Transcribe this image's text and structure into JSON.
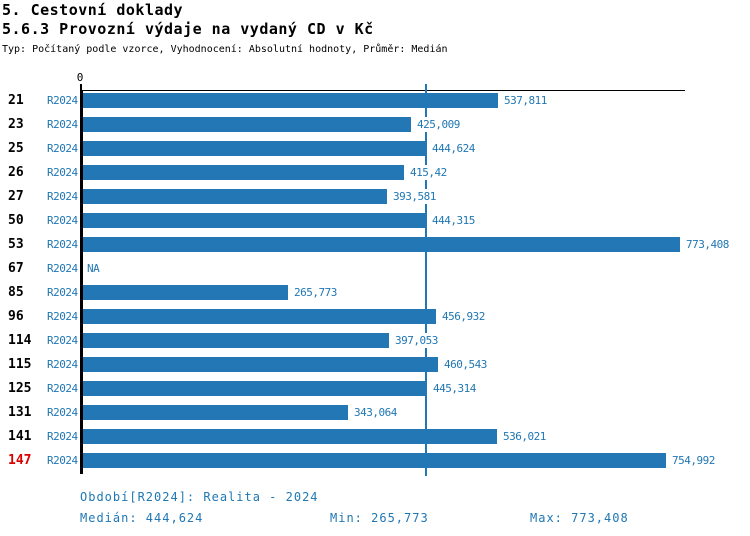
{
  "header": {
    "title": "5. Cestovní doklady",
    "subtitle": "5.6.3 Provozní výdaje na vydaný CD v Kč",
    "meta": "Typ: Počítaný podle vzorce, Vyhodnocení: Absolutní hodnoty, Průměr: Medián"
  },
  "chart_data": {
    "type": "bar",
    "orientation": "horizontal",
    "title": "5.6.3 Provozní výdaje na vydaný CD v Kč",
    "xlabel": "",
    "ylabel": "",
    "axis_zero_label": "0",
    "xlim": [
      0,
      800
    ],
    "grid": false,
    "median_value": 444.624,
    "min_value": 265.773,
    "max_value": 773.408,
    "series_name": "R2024",
    "rows": [
      {
        "id": "21",
        "period": "R2024",
        "value": 537.811,
        "label": "537,811",
        "highlight": false
      },
      {
        "id": "23",
        "period": "R2024",
        "value": 425.009,
        "label": "425,009",
        "highlight": false
      },
      {
        "id": "25",
        "period": "R2024",
        "value": 444.624,
        "label": "444,624",
        "highlight": false
      },
      {
        "id": "26",
        "period": "R2024",
        "value": 415.42,
        "label": "415,42",
        "highlight": false
      },
      {
        "id": "27",
        "period": "R2024",
        "value": 393.581,
        "label": "393,581",
        "highlight": false
      },
      {
        "id": "50",
        "period": "R2024",
        "value": 444.315,
        "label": "444,315",
        "highlight": false
      },
      {
        "id": "53",
        "period": "R2024",
        "value": 773.408,
        "label": "773,408",
        "highlight": false
      },
      {
        "id": "67",
        "period": "R2024",
        "value": null,
        "label": "NA",
        "highlight": false
      },
      {
        "id": "85",
        "period": "R2024",
        "value": 265.773,
        "label": "265,773",
        "highlight": false
      },
      {
        "id": "96",
        "period": "R2024",
        "value": 456.932,
        "label": "456,932",
        "highlight": false
      },
      {
        "id": "114",
        "period": "R2024",
        "value": 397.053,
        "label": "397,053",
        "highlight": false
      },
      {
        "id": "115",
        "period": "R2024",
        "value": 460.543,
        "label": "460,543",
        "highlight": false
      },
      {
        "id": "125",
        "period": "R2024",
        "value": 445.314,
        "label": "445,314",
        "highlight": false
      },
      {
        "id": "131",
        "period": "R2024",
        "value": 343.064,
        "label": "343,064",
        "highlight": false
      },
      {
        "id": "141",
        "period": "R2024",
        "value": 536.021,
        "label": "536,021",
        "highlight": false
      },
      {
        "id": "147",
        "period": "R2024",
        "value": 754.992,
        "label": "754,992",
        "highlight": true
      }
    ]
  },
  "footer": {
    "period_line": "Období[R2024]: Realita - 2024",
    "median_label": "Medián: 444,624",
    "min_label": "Min: 265,773",
    "max_label": "Max: 773,408"
  },
  "colors": {
    "bar": "#2277b4",
    "text_blue": "#1f77b4",
    "highlight_red": "#dd0000",
    "axis_black": "#000000"
  }
}
